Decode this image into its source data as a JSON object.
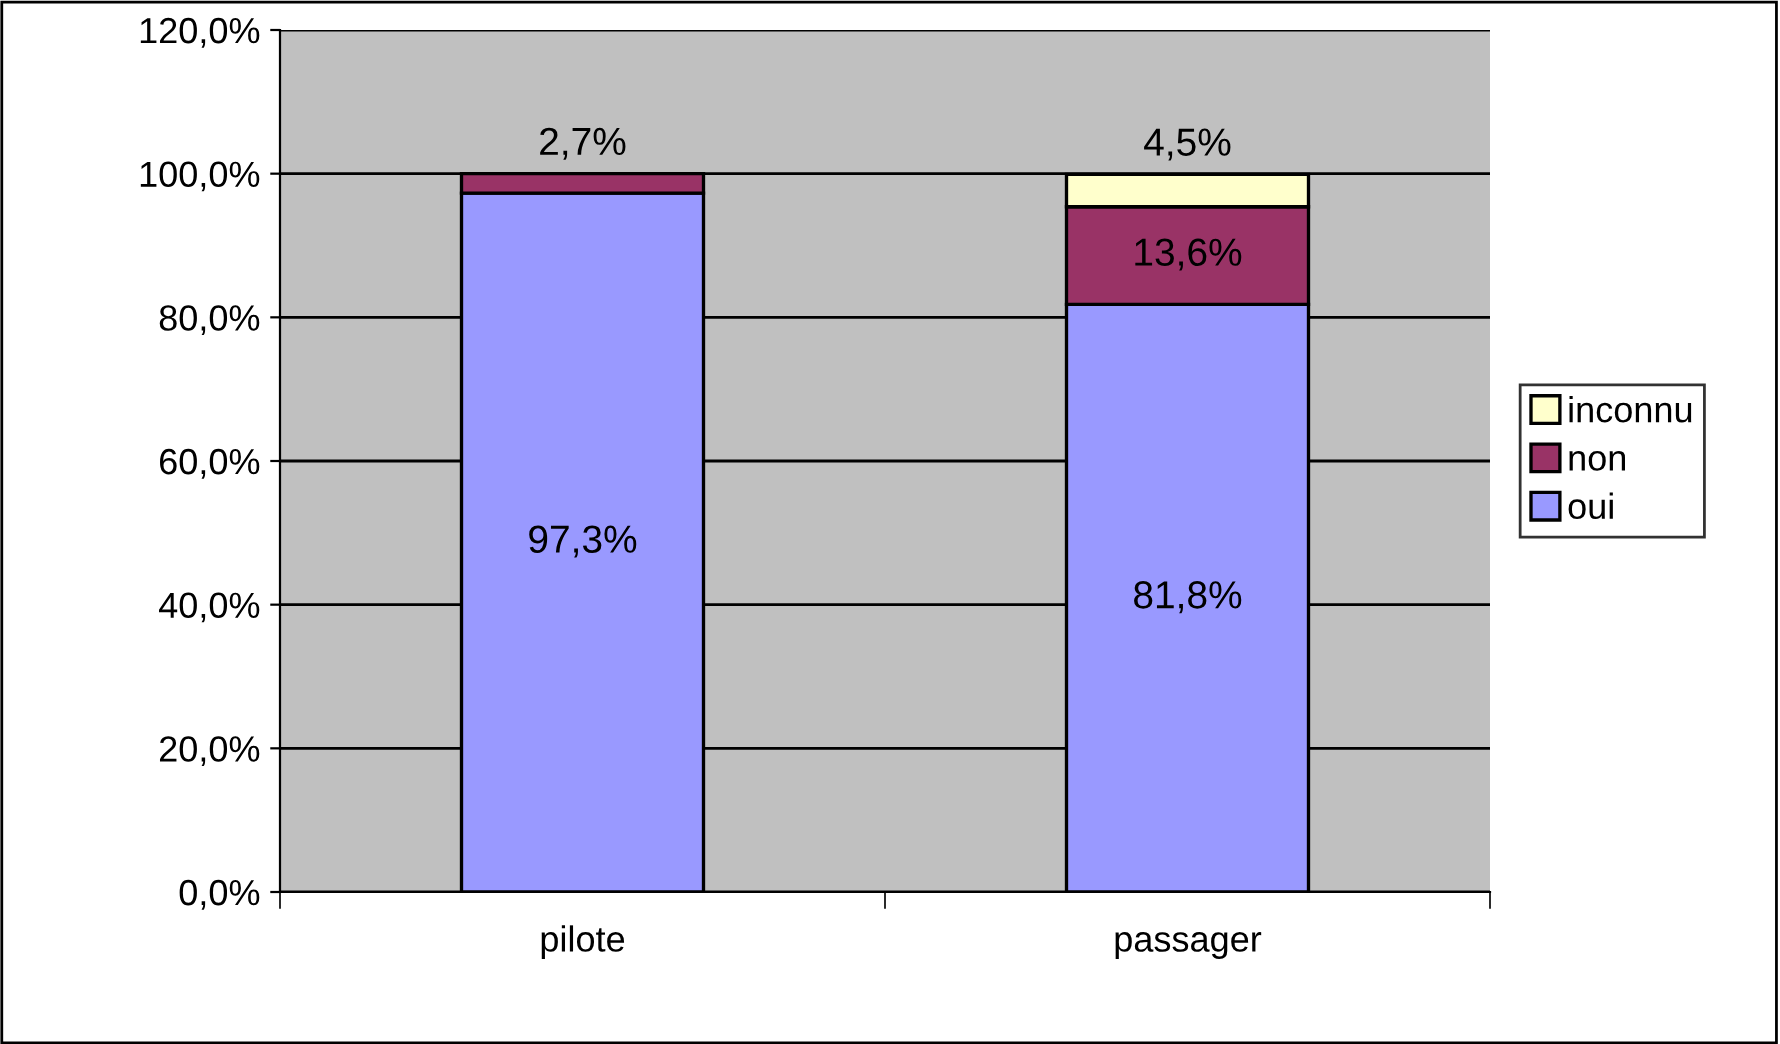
{
  "chart_data": {
    "type": "bar",
    "stacked": true,
    "categories": [
      "pilote",
      "passager"
    ],
    "series": [
      {
        "name": "oui",
        "color": "#9999ff",
        "values": [
          97.3,
          81.8
        ],
        "value_labels": [
          "97,3%",
          "81,8%"
        ]
      },
      {
        "name": "non",
        "color": "#993366",
        "values": [
          2.7,
          13.6
        ],
        "value_labels": [
          "2,7%",
          "13,6%"
        ]
      },
      {
        "name": "inconnu",
        "color": "#ffffcc",
        "values": [
          null,
          4.5
        ],
        "value_labels": [
          null,
          "4,5%"
        ]
      }
    ],
    "ylim": [
      0,
      120
    ],
    "yticks": [
      {
        "value": 0,
        "label": "0,0%"
      },
      {
        "value": 20,
        "label": "20,0%"
      },
      {
        "value": 40,
        "label": "40,0%"
      },
      {
        "value": 60,
        "label": "60,0%"
      },
      {
        "value": 80,
        "label": "80,0%"
      },
      {
        "value": 100,
        "label": "100,0%"
      },
      {
        "value": 120,
        "label": "120,0%"
      }
    ],
    "grid": "y",
    "legend": "right"
  }
}
